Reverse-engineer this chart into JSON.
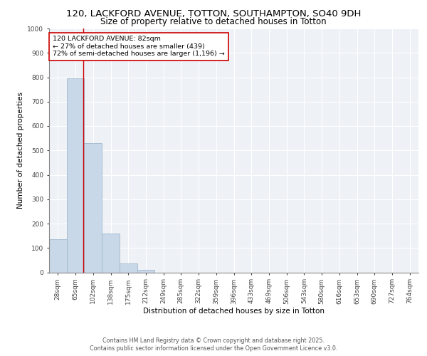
{
  "title_line1": "120, LACKFORD AVENUE, TOTTON, SOUTHAMPTON, SO40 9DH",
  "title_line2": "Size of property relative to detached houses in Totton",
  "xlabel": "Distribution of detached houses by size in Totton",
  "ylabel": "Number of detached properties",
  "categories": [
    "28sqm",
    "65sqm",
    "102sqm",
    "138sqm",
    "175sqm",
    "212sqm",
    "249sqm",
    "285sqm",
    "322sqm",
    "359sqm",
    "396sqm",
    "433sqm",
    "469sqm",
    "506sqm",
    "543sqm",
    "580sqm",
    "616sqm",
    "653sqm",
    "690sqm",
    "727sqm",
    "764sqm"
  ],
  "values": [
    135,
    795,
    530,
    160,
    37,
    10,
    0,
    0,
    0,
    0,
    0,
    0,
    0,
    0,
    0,
    0,
    0,
    0,
    0,
    0,
    0
  ],
  "bar_color": "#c8d8e8",
  "bar_edge_color": "#a0b8cc",
  "red_line_x": 1.45,
  "ylim": [
    0,
    1000
  ],
  "yticks": [
    0,
    100,
    200,
    300,
    400,
    500,
    600,
    700,
    800,
    900,
    1000
  ],
  "annotation_text": "120 LACKFORD AVENUE: 82sqm\n← 27% of detached houses are smaller (439)\n72% of semi-detached houses are larger (1,196) →",
  "annotation_box_color": "#ffffff",
  "annotation_box_edge_color": "#cc0000",
  "red_line_color": "#cc0000",
  "background_color": "#eef2f7",
  "footer_line1": "Contains HM Land Registry data © Crown copyright and database right 2025.",
  "footer_line2": "Contains public sector information licensed under the Open Government Licence v3.0.",
  "grid_color": "#ffffff",
  "title_fontsize": 9.5,
  "subtitle_fontsize": 8.5,
  "tick_fontsize": 6.5,
  "label_fontsize": 7.5,
  "annot_fontsize": 6.8,
  "footer_fontsize": 5.8
}
